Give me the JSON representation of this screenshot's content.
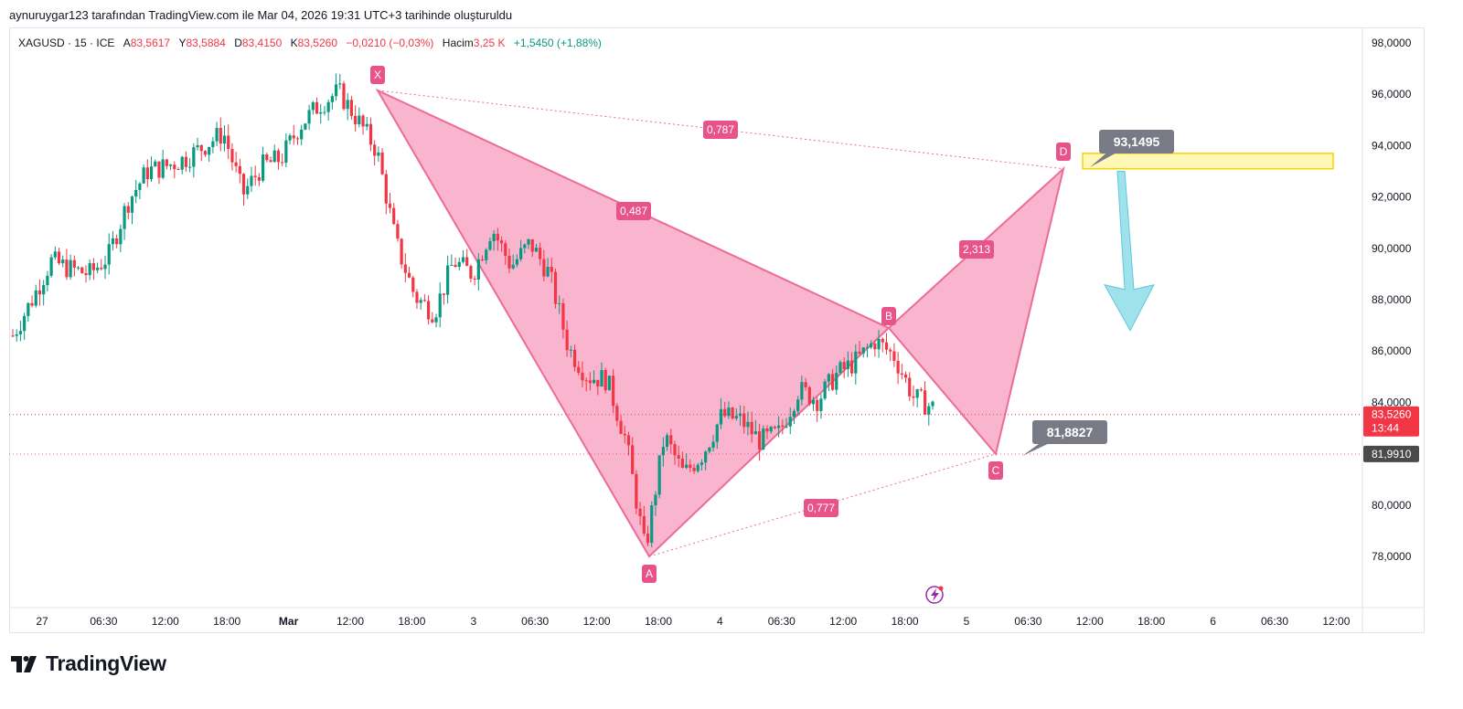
{
  "caption": "aynuruygar123 tarafından TradingView.com ile Mar 04, 2026 19:31 UTC+3 tarihinde oluşturuldu",
  "legend": {
    "symbol": "XAGUSD · 15 · ICE",
    "open_label": "A",
    "open_value": "83,5617",
    "high_label": "Y",
    "high_value": "83,5884",
    "low_label": "D",
    "low_value": "83,4150",
    "close_label": "K",
    "close_value": "83,5260",
    "change": "−0,0210 (−0,03%)",
    "volume_label": "Hacim",
    "volume_value": "3,25 K",
    "volume_change": "+1,5450 (+1,88%)"
  },
  "footer": {
    "logo_text": "TradingView"
  },
  "colors": {
    "up": "#089981",
    "down": "#f23645",
    "pattern_fill": "#f7a8c4",
    "pattern_line": "#ec6c97",
    "label_pink": "#e8548a",
    "target_box": "#fff59d",
    "target_border": "#f5d400",
    "arrow": "#80d8e6",
    "callout": "#787b86"
  },
  "chart_data": {
    "type": "candlestick",
    "symbol": "XAGUSD",
    "interval": "15",
    "ylim": [
      76,
      98.5
    ],
    "y_ticks": [
      "98,0000",
      "96,0000",
      "94,0000",
      "92,0000",
      "90,0000",
      "88,0000",
      "86,0000",
      "84,0000",
      "82,0000",
      "80,0000",
      "78,0000"
    ],
    "y_tick_values": [
      98,
      96,
      94,
      92,
      90,
      88,
      86,
      84,
      82,
      80,
      78
    ],
    "x_ticks": [
      "27",
      "06:30",
      "12:00",
      "18:00",
      "Mar",
      "12:00",
      "18:00",
      "3",
      "06:30",
      "12:00",
      "18:00",
      "4",
      "06:30",
      "12:00",
      "18:00",
      "5",
      "06:30",
      "12:00",
      "18:00",
      "6",
      "06:30",
      "12:00"
    ],
    "x_tick_bold": [
      "Mar"
    ],
    "price_path": [
      [
        86.6,
        88.9
      ],
      [
        88.0,
        89.7
      ],
      [
        89.5,
        90.5
      ],
      [
        89.2,
        90.0
      ],
      [
        89.0,
        89.7
      ],
      [
        89.7,
        92.5
      ],
      [
        91.8,
        94.0
      ],
      [
        93.0,
        93.3
      ],
      [
        93.2,
        94.0
      ],
      [
        93.5,
        94.5
      ],
      [
        94.0,
        96.2
      ],
      [
        94.5,
        95.0
      ],
      [
        92.1,
        93.8
      ],
      [
        93.2,
        94.0
      ],
      [
        93.5,
        93.3
      ],
      [
        94.8,
        95.3
      ],
      [
        95.6,
        96.0
      ],
      [
        96.1,
        95.4
      ],
      [
        95.0,
        94.0
      ],
      [
        93.8,
        92.5
      ],
      [
        90.2,
        88.9
      ],
      [
        88.1,
        86.8
      ],
      [
        87.5,
        88.5
      ],
      [
        89.5,
        90.3
      ],
      [
        89.0,
        90.2
      ],
      [
        90.8,
        91.0
      ],
      [
        89.3,
        90.1
      ],
      [
        90.2,
        89.7
      ],
      [
        89.0,
        86.8
      ],
      [
        86.1,
        84.0
      ],
      [
        85.0,
        86.2
      ],
      [
        84.9,
        83.5
      ],
      [
        82.5,
        80.6
      ],
      [
        78.2,
        80.5
      ],
      [
        82.7,
        83.0
      ],
      [
        81.2,
        80.1
      ],
      [
        82.0,
        83.0
      ],
      [
        83.5,
        82.8
      ],
      [
        83.3,
        83.6
      ],
      [
        82.5,
        82.2
      ],
      [
        82.8,
        83.6
      ],
      [
        84.5,
        85.0
      ],
      [
        84.1,
        84.9
      ],
      [
        85.1,
        84.6
      ],
      [
        85.6,
        86.3
      ],
      [
        86.4,
        86.8
      ],
      [
        85.8,
        85.2
      ],
      [
        84.2,
        83.6
      ],
      [
        83.8,
        83.5
      ]
    ],
    "last_price": "83,5260",
    "last_price_value": 83.526,
    "countdown": "13:44",
    "level_line": "81,9910",
    "level_line_value": 81.991,
    "harmonic_pattern": {
      "points": [
        {
          "label": "X",
          "price": 96.15
        },
        {
          "label": "A",
          "price": 78.0
        },
        {
          "label": "B",
          "price": 86.9
        },
        {
          "label": "C",
          "price": 81.99
        },
        {
          "label": "D",
          "price": 93.1
        }
      ],
      "ratios": [
        "0,787",
        "0,487",
        "2,313",
        "0,777"
      ]
    },
    "callouts": [
      {
        "text": "93,1495",
        "price": 93.1495
      },
      {
        "text": "81,8827",
        "price": 81.8827
      }
    ],
    "target_zone": {
      "from": 93.1,
      "to": 93.7
    },
    "projection_arrow": {
      "direction": "down",
      "from": 93.0,
      "to": 86.8
    }
  }
}
